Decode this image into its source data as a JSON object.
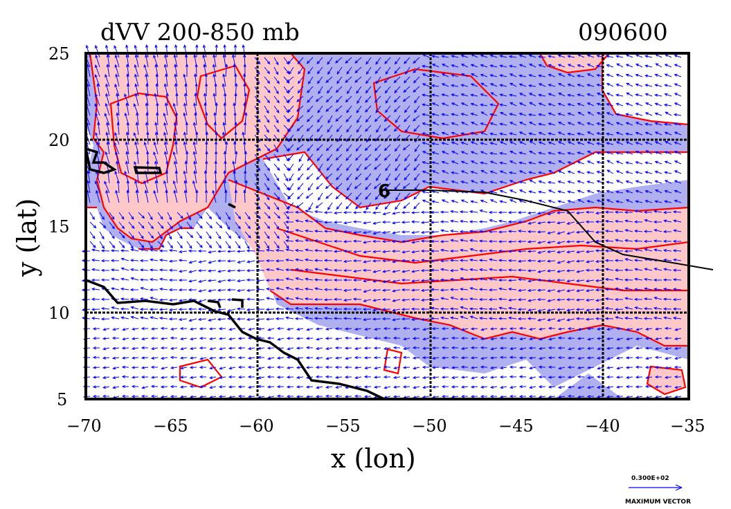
{
  "map": {
    "title": "dVV 200-850 mb",
    "time_label": "090600",
    "xlabel": "x (lon)",
    "ylabel": "y (lat)",
    "x_ticks": [
      "−70",
      "−65",
      "−60",
      "−55",
      "−50",
      "−45",
      "−40",
      "−35"
    ],
    "y_ticks": [
      "25",
      "20",
      "15",
      "10",
      "5"
    ],
    "lon_range": [
      -70,
      -35
    ],
    "lat_range": [
      5,
      25
    ],
    "grid_lines_lon": [
      -60,
      -50,
      -40
    ],
    "grid_lines_lat": [
      20,
      10
    ],
    "legend": {
      "vector_value": "0.300E+02",
      "vector_label": "MAXIMUM VECTOR"
    },
    "storm_symbol": "6",
    "colors": {
      "positive_fill": "#ffc8c8",
      "negative_fill": "#b0b0f0",
      "contour": "#ff0000",
      "vector": "#0000ff",
      "coast": "#000000"
    }
  }
}
